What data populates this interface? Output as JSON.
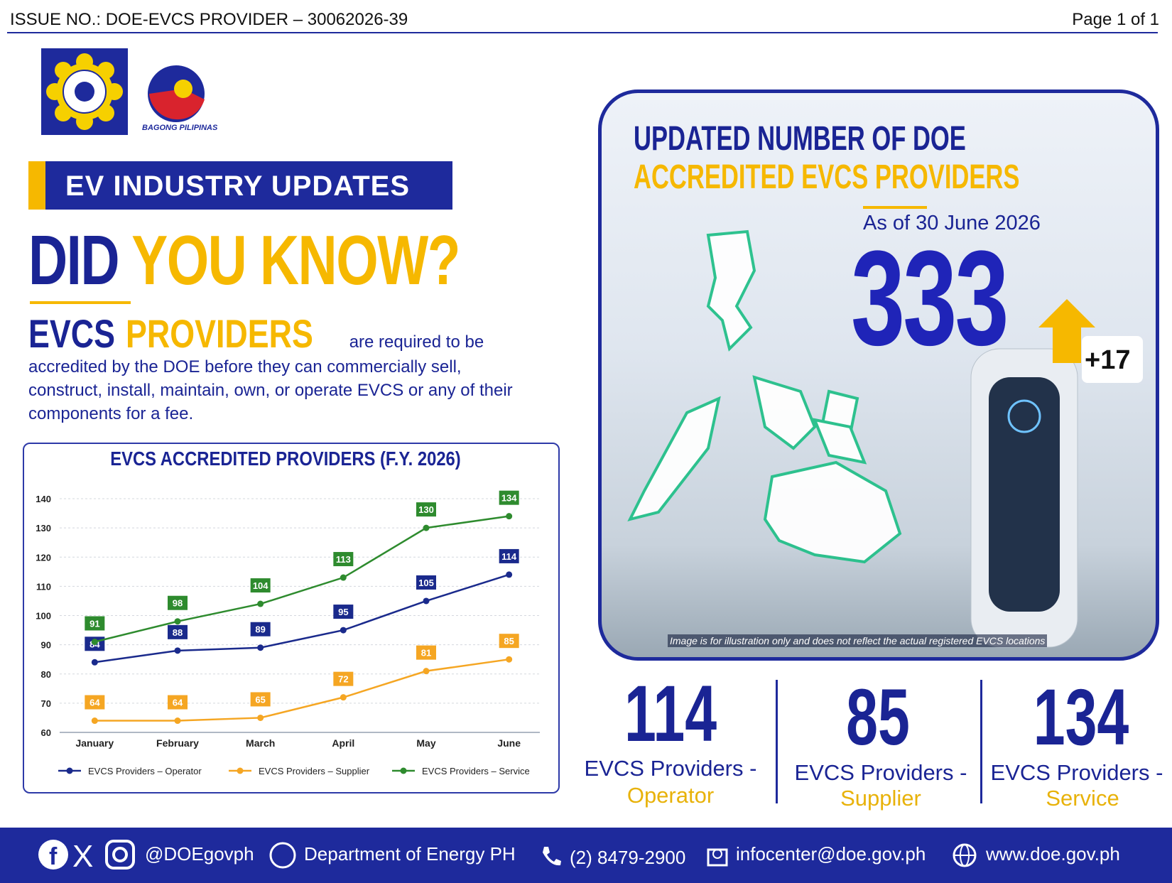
{
  "header": {
    "issue_no": "ISSUE NO.: DOE-EVCS PROVIDER – 30062026-39",
    "page": "Page 1 of 1"
  },
  "logos": {
    "bagong_pilipinas": "BAGONG PILIPINAS"
  },
  "banner": "EV INDUSTRY UPDATES",
  "headline": {
    "part1": "DID",
    "part2": "YOU KNOW?"
  },
  "intro": {
    "term1": "EVCS",
    "term2": "PROVIDERS",
    "text": "are required to be accredited by the DOE before they can commercially sell, construct, install, maintain, own, or operate EVCS or any of their components for a fee."
  },
  "panel": {
    "title_line1": "UPDATED NUMBER OF DOE",
    "title_line2": "ACCREDITED EVCS PROVIDERS",
    "as_of": "As of 30 June 2026",
    "total": "333",
    "increase": "+17",
    "disclaimer": "Image is for illustration only and does not reflect the actual registered EVCS locations"
  },
  "stats": [
    {
      "value": "114",
      "label": "EVCS Providers -",
      "category": "Operator"
    },
    {
      "value": "85",
      "label": "EVCS Providers -",
      "category": "Supplier"
    },
    {
      "value": "134",
      "label": "EVCS Providers -",
      "category": "Service"
    }
  ],
  "footer": {
    "social": "@DOEgovph",
    "facebook_page": "Department of Energy PH",
    "phone": "(2) 8479-2900",
    "email": "infocenter@doe.gov.ph",
    "website": "www.doe.gov.ph"
  },
  "chart_data": {
    "type": "line",
    "title": "EVCS ACCREDITED PROVIDERS (F.Y. 2026)",
    "categories": [
      "January",
      "February",
      "March",
      "April",
      "May",
      "June"
    ],
    "series": [
      {
        "name": "EVCS Providers – Operator",
        "color": "#1a2a8c",
        "values": [
          84,
          88,
          89,
          95,
          105,
          114
        ]
      },
      {
        "name": "EVCS Providers – Supplier",
        "color": "#f5a623",
        "values": [
          64,
          64,
          65,
          72,
          81,
          85
        ]
      },
      {
        "name": "EVCS Providers – Service",
        "color": "#2e8b2e",
        "values": [
          91,
          98,
          104,
          113,
          130,
          134
        ]
      }
    ],
    "ylim": [
      60,
      140
    ],
    "yticks": [
      60,
      70,
      80,
      90,
      100,
      110,
      120,
      130,
      140
    ],
    "grid": true,
    "legend": "bottom"
  }
}
